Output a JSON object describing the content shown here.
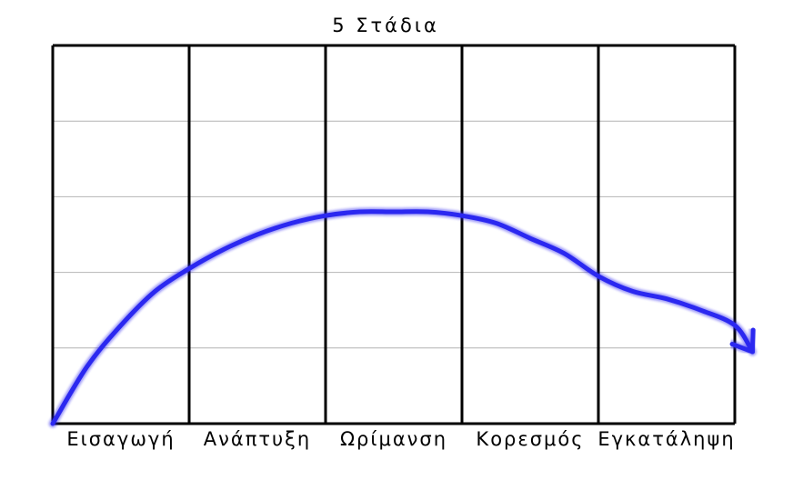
{
  "chart_data": {
    "type": "line",
    "title": "5 Στάδια",
    "categories": [
      "Εισαγωγή",
      "Ανάπτυξη",
      "Ωρίμανση",
      "Κορεσμός",
      "Εγκατάληψη"
    ],
    "x_range": [
      0,
      5
    ],
    "ylim": [
      0,
      5
    ],
    "grid": true,
    "series": [
      {
        "values_x": [
          0,
          0.25,
          0.5,
          0.75,
          1.0,
          1.25,
          1.5,
          1.75,
          2.0,
          2.25,
          2.5,
          2.75,
          3.0,
          3.25,
          3.5,
          3.75,
          4.0,
          4.25,
          4.5,
          4.75,
          5.0,
          5.13
        ],
        "values_y": [
          0,
          0.75,
          1.3,
          1.75,
          2.05,
          2.3,
          2.5,
          2.65,
          2.75,
          2.8,
          2.8,
          2.8,
          2.75,
          2.65,
          2.45,
          2.25,
          1.95,
          1.75,
          1.65,
          1.5,
          1.3,
          0.95
        ],
        "color": "#2b28f0"
      }
    ]
  }
}
